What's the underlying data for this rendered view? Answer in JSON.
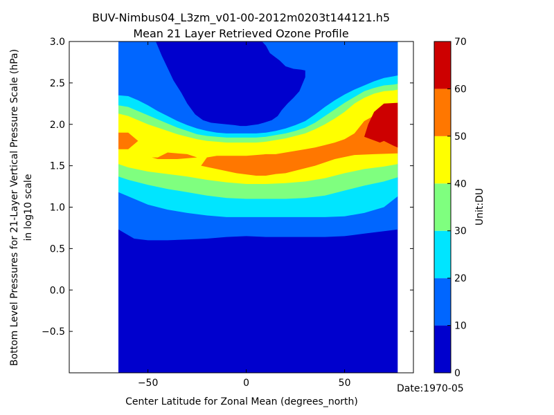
{
  "chart_data": {
    "type": "filled-contour",
    "title_line1": "BUV-Nimbus04_L3zm_v01-00-2012m0203t144121.h5",
    "title_line2": "Mean 21 Layer Retrieved Ozone Profile",
    "xlabel": "Center Latitude for Zonal Mean (degrees_north)",
    "ylabel_line1": "Bottom Level Pressures for 21-Layer Vertical Pressure Scale (hPa)",
    "ylabel_line2": "in log10 scale",
    "date_label": "Date:1970-05",
    "colorbar_label": "Unit:DU",
    "xlim": [
      -90,
      85
    ],
    "ylim": [
      -1.0,
      3.0
    ],
    "xticks": [
      -50,
      0,
      50
    ],
    "xtick_labels": [
      "−50",
      "0",
      "50"
    ],
    "yticks": [
      -0.5,
      0.0,
      0.5,
      1.0,
      1.5,
      2.0,
      2.5,
      3.0
    ],
    "ytick_labels": [
      "−0.5",
      "0.0",
      "0.5",
      "1.0",
      "1.5",
      "2.0",
      "2.5",
      "3.0"
    ],
    "data_lat_range": [
      -65,
      77
    ],
    "levels": [
      0,
      10,
      20,
      30,
      40,
      50,
      60,
      70
    ],
    "level_labels": [
      "0",
      "10",
      "20",
      "30",
      "40",
      "50",
      "60",
      "70"
    ],
    "level_colors": [
      "#0000cd",
      "#0066ff",
      "#00e5ff",
      "#7fff7f",
      "#ffff00",
      "#ff7700",
      "#cd0000"
    ],
    "grid": false,
    "contour_boundaries": [
      {
        "level": 10,
        "pieces": [
          {
            "lat": [
              -65,
              -57,
              -50,
              -40,
              -30,
              -20,
              -10,
              0,
              10,
              20,
              30,
              40,
              50,
              60,
              70,
              77
            ],
            "y": [
              0.73,
              0.62,
              0.6,
              0.6,
              0.61,
              0.62,
              0.64,
              0.65,
              0.64,
              0.64,
              0.64,
              0.64,
              0.65,
              0.68,
              0.71,
              0.73
            ]
          }
        ]
      },
      {
        "level": 20,
        "pieces": [
          {
            "lat": [
              -65,
              -60,
              -50,
              -40,
              -30,
              -20,
              -10,
              0,
              10,
              20,
              30,
              40,
              50,
              60,
              70,
              77
            ],
            "y": [
              1.18,
              1.13,
              1.03,
              0.97,
              0.93,
              0.9,
              0.88,
              0.88,
              0.88,
              0.88,
              0.88,
              0.88,
              0.89,
              0.93,
              1.0,
              1.13
            ]
          }
        ]
      },
      {
        "level": 30,
        "pieces": [
          {
            "lat": [
              -65,
              -60,
              -50,
              -40,
              -30,
              -20,
              -10,
              0,
              10,
              20,
              30,
              40,
              50,
              60,
              70,
              77
            ],
            "y": [
              1.37,
              1.33,
              1.27,
              1.22,
              1.18,
              1.14,
              1.11,
              1.1,
              1.1,
              1.1,
              1.11,
              1.14,
              1.2,
              1.26,
              1.31,
              1.36
            ]
          }
        ]
      },
      {
        "level": 40,
        "pieces": [
          {
            "lat": [
              -65,
              -60,
              -50,
              -40,
              -30,
              -20,
              -10,
              0,
              10,
              20,
              30,
              40,
              50,
              60,
              70,
              77
            ],
            "y": [
              1.52,
              1.48,
              1.43,
              1.4,
              1.37,
              1.33,
              1.3,
              1.28,
              1.28,
              1.29,
              1.31,
              1.35,
              1.41,
              1.46,
              1.49,
              1.52
            ]
          }
        ]
      },
      {
        "level": 50,
        "pieces": [
          {
            "lat": [
              -65,
              -60,
              -55,
              -60,
              -65
            ],
            "y": [
              1.9,
              1.9,
              1.8,
              1.7,
              1.7
            ]
          },
          {
            "lat": [
              -45,
              -40,
              -35,
              -30,
              -25,
              -35,
              -45,
              -48
            ],
            "y": [
              1.6,
              1.66,
              1.65,
              1.64,
              1.6,
              1.58,
              1.58,
              1.6
            ]
          },
          {
            "lat": [
              -23,
              -15,
              -5,
              5,
              10,
              15,
              20,
              25,
              35,
              45,
              55,
              65,
              77
            ],
            "y": [
              1.5,
              1.46,
              1.41,
              1.38,
              1.38,
              1.4,
              1.41,
              1.44,
              1.5,
              1.58,
              1.63,
              1.64,
              1.65
            ]
          },
          {
            "lat": [
              77,
              70,
              60,
              55,
              50,
              45,
              40,
              35,
              30,
              25,
              20,
              15,
              10,
              5,
              0,
              -5,
              -10,
              -15,
              -20,
              -23
            ],
            "y": [
              2.2,
              2.17,
              2.04,
              1.89,
              1.82,
              1.78,
              1.75,
              1.72,
              1.7,
              1.68,
              1.66,
              1.64,
              1.64,
              1.63,
              1.62,
              1.62,
              1.62,
              1.62,
              1.6,
              1.5
            ]
          }
        ]
      },
      {
        "level": 60,
        "pieces": [
          {
            "lat": [
              77,
              75,
              70,
              68,
              60,
              62,
              65,
              70,
              77
            ],
            "y": [
              1.72,
              1.74,
              1.8,
              1.78,
              1.85,
              2.0,
              2.15,
              2.25,
              2.26
            ]
          }
        ]
      }
    ],
    "regions_above_50": [
      {
        "level": 50,
        "lat": [
          -65,
          -60,
          -55,
          -60,
          -65
        ],
        "y": [
          1.9,
          1.9,
          1.8,
          1.7,
          1.7
        ]
      },
      {
        "level": 50,
        "lat": [
          -45,
          -40,
          -35,
          -30,
          -25,
          -35,
          -45,
          -48
        ],
        "y": [
          1.6,
          1.66,
          1.65,
          1.64,
          1.6,
          1.58,
          1.58,
          1.6
        ]
      },
      {
        "level": 50,
        "lat": [
          -23,
          -15,
          -5,
          5,
          10,
          15,
          20,
          25,
          35,
          45,
          55,
          65,
          77,
          77,
          70,
          60,
          55,
          50,
          45,
          40,
          35,
          30,
          25,
          20,
          15,
          10,
          5,
          0,
          -5,
          -10,
          -15,
          -20
        ],
        "y": [
          1.5,
          1.46,
          1.41,
          1.38,
          1.38,
          1.4,
          1.41,
          1.44,
          1.5,
          1.58,
          1.63,
          1.64,
          1.65,
          2.2,
          2.17,
          2.04,
          1.89,
          1.82,
          1.78,
          1.75,
          1.72,
          1.7,
          1.68,
          1.66,
          1.64,
          1.64,
          1.63,
          1.62,
          1.62,
          1.62,
          1.62,
          1.6
        ]
      },
      {
        "level": 60,
        "lat": [
          77,
          75,
          70,
          68,
          60,
          62,
          65,
          70,
          77
        ],
        "y": [
          1.72,
          1.74,
          1.8,
          1.78,
          1.85,
          2.0,
          2.15,
          2.25,
          2.26
        ]
      }
    ],
    "upper_bands": {
      "lat": [
        -65,
        -60,
        -55,
        -50,
        -45,
        -40,
        -35,
        -30,
        -25,
        -20,
        -15,
        -10,
        -5,
        0,
        5,
        10,
        15,
        20,
        25,
        30,
        35,
        40,
        45,
        50,
        55,
        60,
        65,
        70,
        75,
        77
      ],
      "y40": [
        2.13,
        2.1,
        2.05,
        2.0,
        1.96,
        1.92,
        1.88,
        1.85,
        1.82,
        1.8,
        1.79,
        1.78,
        1.78,
        1.78,
        1.78,
        1.79,
        1.81,
        1.83,
        1.86,
        1.89,
        1.94,
        2.0,
        2.07,
        2.15,
        2.25,
        2.32,
        2.37,
        2.4,
        2.41,
        2.42
      ],
      "y30": [
        2.23,
        2.21,
        2.16,
        2.11,
        2.06,
        2.01,
        1.96,
        1.92,
        1.88,
        1.86,
        1.85,
        1.84,
        1.84,
        1.84,
        1.84,
        1.85,
        1.87,
        1.89,
        1.92,
        1.96,
        2.02,
        2.1,
        2.18,
        2.26,
        2.33,
        2.4,
        2.44,
        2.47,
        2.48,
        2.49
      ],
      "y20": [
        2.35,
        2.34,
        2.29,
        2.23,
        2.16,
        2.1,
        2.04,
        1.99,
        1.95,
        1.92,
        1.9,
        1.89,
        1.89,
        1.89,
        1.89,
        1.9,
        1.92,
        1.95,
        1.99,
        2.04,
        2.12,
        2.21,
        2.29,
        2.36,
        2.42,
        2.47,
        2.52,
        2.56,
        2.58,
        2.59
      ]
    },
    "hole_below_10": {
      "lat": [
        -46,
        -43,
        -40,
        -37,
        -33,
        -30,
        -26,
        -22,
        -18,
        -14,
        -10,
        -6,
        -3,
        0,
        3,
        6,
        9,
        13,
        16,
        18,
        21,
        24,
        27,
        30,
        30,
        28,
        24,
        20,
        17,
        12,
        10,
        8
      ],
      "y": [
        3.0,
        2.83,
        2.68,
        2.53,
        2.38,
        2.25,
        2.12,
        2.05,
        2.02,
        2.01,
        2.0,
        1.99,
        1.98,
        1.98,
        1.99,
        2.0,
        2.02,
        2.05,
        2.1,
        2.17,
        2.25,
        2.32,
        2.4,
        2.57,
        2.65,
        2.66,
        2.67,
        2.7,
        2.77,
        2.86,
        2.95,
        3.0
      ]
    }
  }
}
